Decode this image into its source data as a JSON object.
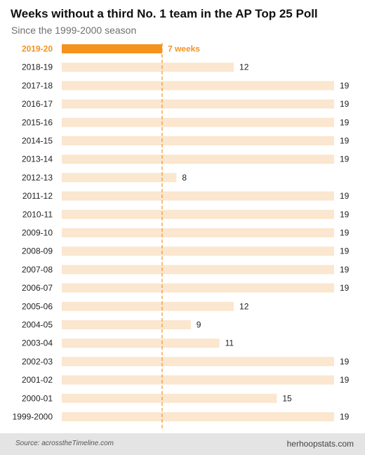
{
  "title": "Weeks without a third No. 1 team in the AP Top 25 Poll",
  "subtitle": "Since the 1999-2000 season",
  "footer": {
    "source": "Source: acrosstheTimeline.com",
    "brand": "herhoopstats.com"
  },
  "colors": {
    "bar": "#fbe6cf",
    "highlight": "#f5921e",
    "label": "#222222",
    "reference_line": "#f5921e"
  },
  "chart_data": {
    "type": "bar",
    "orientation": "horizontal",
    "categories": [
      "2019-20",
      "2018-19",
      "2017-18",
      "2016-17",
      "2015-16",
      "2014-15",
      "2013-14",
      "2012-13",
      "2011-12",
      "2010-11",
      "2009-10",
      "2008-09",
      "2007-08",
      "2006-07",
      "2005-06",
      "2004-05",
      "2003-04",
      "2002-03",
      "2001-02",
      "2000-01",
      "1999-2000"
    ],
    "values": [
      7,
      12,
      19,
      19,
      19,
      19,
      19,
      8,
      19,
      19,
      19,
      19,
      19,
      19,
      12,
      9,
      11,
      19,
      19,
      15,
      19
    ],
    "value_labels": [
      "7 weeks",
      "12",
      "19",
      "19",
      "19",
      "19",
      "19",
      "8",
      "19",
      "19",
      "19",
      "19",
      "19",
      "19",
      "12",
      "9",
      "11",
      "19",
      "19",
      "15",
      "19"
    ],
    "highlight_index": 0,
    "reference_line": 7,
    "xlim": [
      0,
      19
    ],
    "grid": false,
    "legend": "none"
  }
}
